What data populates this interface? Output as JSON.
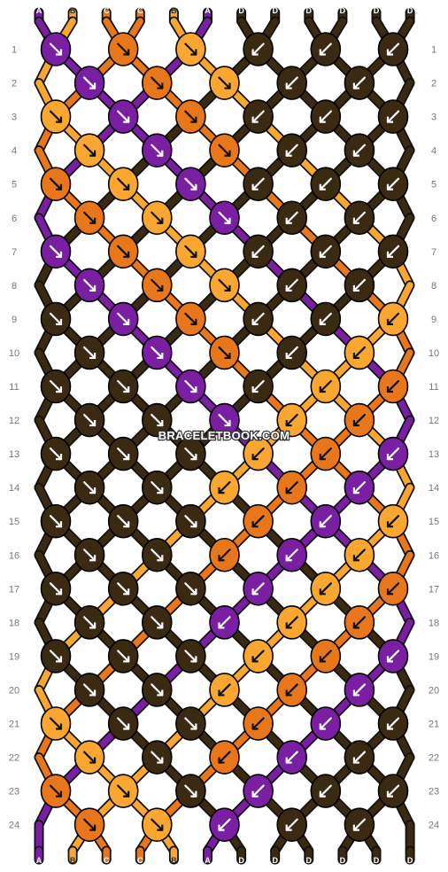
{
  "site": {
    "watermark": "BRACELETBOOK.COM"
  },
  "colors": {
    "A": "#7b1fa2",
    "B": "#f9a730",
    "C": "#e8761b",
    "D": "#3a2a12"
  },
  "pattern": {
    "top_strands": [
      "A",
      "B",
      "C",
      "C",
      "B",
      "A",
      "D",
      "D",
      "D",
      "D",
      "D",
      "D"
    ],
    "bottom_strands": [
      "A",
      "B",
      "C",
      "C",
      "B",
      "A",
      "D",
      "D",
      "D",
      "D",
      "D",
      "D"
    ],
    "row_numbers": [
      "1",
      "2",
      "3",
      "4",
      "5",
      "6",
      "7",
      "8",
      "9",
      "10",
      "11",
      "12",
      "13",
      "14",
      "15",
      "16",
      "17",
      "18",
      "19",
      "20",
      "21",
      "22",
      "23",
      "24"
    ],
    "knot_rows": [
      [
        [
          "A",
          "se"
        ],
        [
          "C",
          "se"
        ],
        [
          "B",
          "se"
        ],
        [
          "D",
          "sw"
        ],
        [
          "D",
          "sw"
        ],
        [
          "D",
          "sw"
        ]
      ],
      [
        [
          "A",
          "se"
        ],
        [
          "C",
          "se"
        ],
        [
          "B",
          "se"
        ],
        [
          "D",
          "sw"
        ],
        [
          "D",
          "sw"
        ]
      ],
      [
        [
          "B",
          "se"
        ],
        [
          "A",
          "se"
        ],
        [
          "C",
          "se"
        ],
        [
          "D",
          "sw"
        ],
        [
          "D",
          "sw"
        ],
        [
          "D",
          "sw"
        ]
      ],
      [
        [
          "B",
          "se"
        ],
        [
          "A",
          "se"
        ],
        [
          "C",
          "se"
        ],
        [
          "D",
          "sw"
        ],
        [
          "D",
          "sw"
        ]
      ],
      [
        [
          "C",
          "se"
        ],
        [
          "B",
          "se"
        ],
        [
          "A",
          "se"
        ],
        [
          "D",
          "sw"
        ],
        [
          "D",
          "sw"
        ],
        [
          "D",
          "sw"
        ]
      ],
      [
        [
          "C",
          "se"
        ],
        [
          "B",
          "se"
        ],
        [
          "A",
          "se"
        ],
        [
          "D",
          "sw"
        ],
        [
          "D",
          "sw"
        ]
      ],
      [
        [
          "A",
          "se"
        ],
        [
          "C",
          "se"
        ],
        [
          "B",
          "se"
        ],
        [
          "D",
          "sw"
        ],
        [
          "D",
          "sw"
        ],
        [
          "D",
          "sw"
        ]
      ],
      [
        [
          "A",
          "se"
        ],
        [
          "C",
          "se"
        ],
        [
          "B",
          "se"
        ],
        [
          "D",
          "sw"
        ],
        [
          "D",
          "sw"
        ]
      ],
      [
        [
          "D",
          "se"
        ],
        [
          "A",
          "se"
        ],
        [
          "C",
          "se"
        ],
        [
          "D",
          "sw"
        ],
        [
          "D",
          "sw"
        ],
        [
          "B",
          "sw"
        ]
      ],
      [
        [
          "D",
          "se"
        ],
        [
          "A",
          "se"
        ],
        [
          "C",
          "se"
        ],
        [
          "D",
          "sw"
        ],
        [
          "B",
          "sw"
        ]
      ],
      [
        [
          "D",
          "se"
        ],
        [
          "D",
          "se"
        ],
        [
          "A",
          "se"
        ],
        [
          "D",
          "sw"
        ],
        [
          "B",
          "sw"
        ],
        [
          "C",
          "sw"
        ]
      ],
      [
        [
          "D",
          "se"
        ],
        [
          "D",
          "se"
        ],
        [
          "A",
          "se"
        ],
        [
          "B",
          "sw"
        ],
        [
          "C",
          "sw"
        ]
      ],
      [
        [
          "D",
          "se"
        ],
        [
          "D",
          "se"
        ],
        [
          "D",
          "se"
        ],
        [
          "B",
          "sw"
        ],
        [
          "C",
          "sw"
        ],
        [
          "A",
          "sw"
        ]
      ],
      [
        [
          "D",
          "se"
        ],
        [
          "D",
          "se"
        ],
        [
          "B",
          "sw"
        ],
        [
          "C",
          "sw"
        ],
        [
          "A",
          "sw"
        ]
      ],
      [
        [
          "D",
          "se"
        ],
        [
          "D",
          "se"
        ],
        [
          "D",
          "se"
        ],
        [
          "C",
          "sw"
        ],
        [
          "A",
          "sw"
        ],
        [
          "B",
          "sw"
        ]
      ],
      [
        [
          "D",
          "se"
        ],
        [
          "D",
          "se"
        ],
        [
          "C",
          "sw"
        ],
        [
          "A",
          "sw"
        ],
        [
          "B",
          "sw"
        ]
      ],
      [
        [
          "D",
          "se"
        ],
        [
          "D",
          "se"
        ],
        [
          "D",
          "se"
        ],
        [
          "A",
          "sw"
        ],
        [
          "B",
          "sw"
        ],
        [
          "C",
          "sw"
        ]
      ],
      [
        [
          "D",
          "se"
        ],
        [
          "D",
          "se"
        ],
        [
          "A",
          "sw"
        ],
        [
          "B",
          "sw"
        ],
        [
          "C",
          "sw"
        ]
      ],
      [
        [
          "D",
          "se"
        ],
        [
          "D",
          "se"
        ],
        [
          "D",
          "se"
        ],
        [
          "B",
          "sw"
        ],
        [
          "C",
          "sw"
        ],
        [
          "A",
          "sw"
        ]
      ],
      [
        [
          "D",
          "se"
        ],
        [
          "D",
          "se"
        ],
        [
          "B",
          "sw"
        ],
        [
          "C",
          "sw"
        ],
        [
          "A",
          "sw"
        ]
      ],
      [
        [
          "B",
          "se"
        ],
        [
          "D",
          "se"
        ],
        [
          "D",
          "se"
        ],
        [
          "C",
          "sw"
        ],
        [
          "A",
          "sw"
        ],
        [
          "D",
          "sw"
        ]
      ],
      [
        [
          "B",
          "se"
        ],
        [
          "D",
          "se"
        ],
        [
          "C",
          "sw"
        ],
        [
          "A",
          "sw"
        ],
        [
          "D",
          "sw"
        ]
      ],
      [
        [
          "C",
          "se"
        ],
        [
          "B",
          "se"
        ],
        [
          "D",
          "se"
        ],
        [
          "A",
          "sw"
        ],
        [
          "D",
          "sw"
        ],
        [
          "D",
          "sw"
        ]
      ],
      [
        [
          "C",
          "se"
        ],
        [
          "B",
          "se"
        ],
        [
          "A",
          "sw"
        ],
        [
          "D",
          "sw"
        ],
        [
          "D",
          "sw"
        ]
      ]
    ]
  }
}
